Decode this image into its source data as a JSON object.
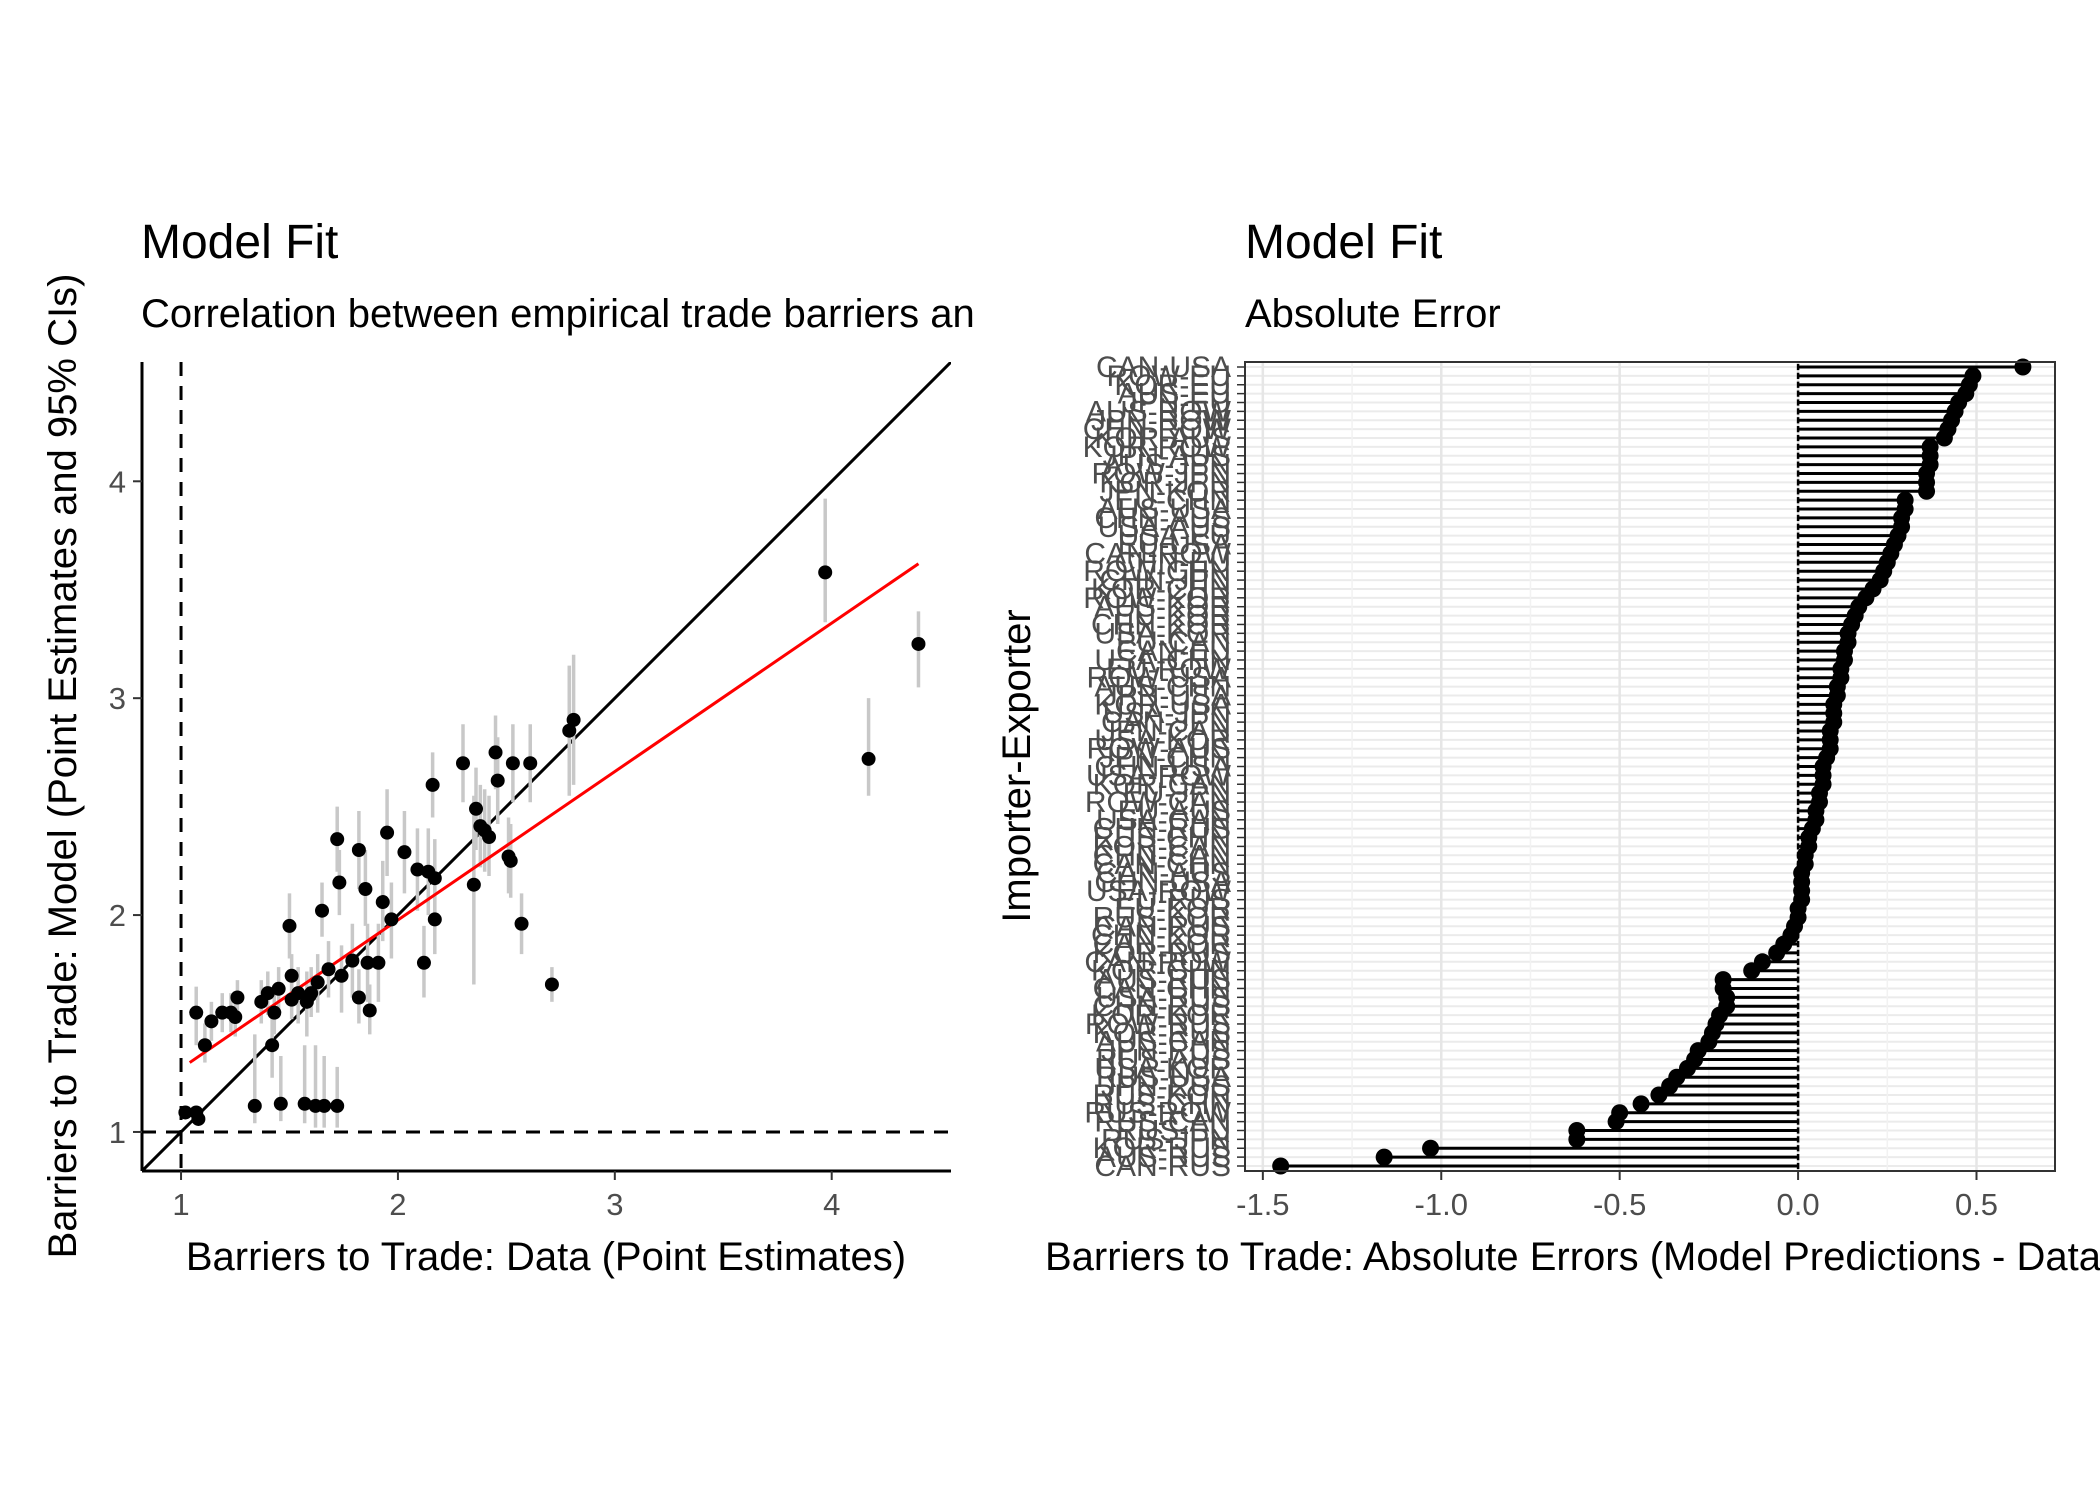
{
  "chart_data": [
    {
      "type": "scatter",
      "title": "Model Fit",
      "subtitle": "Correlation between empirical trade barriers and model estimates",
      "xlabel": "Barriers to Trade: Data (Point Estimates)",
      "ylabel": "Barriers to Trade: Model (Point Estimates and 95% CIs)",
      "xlim": [
        0.82,
        4.55
      ],
      "ylim": [
        0.82,
        4.55
      ],
      "xticks": [
        "1",
        "2",
        "3",
        "4"
      ],
      "yticks": [
        "1",
        "2",
        "3",
        "4"
      ],
      "grid": false,
      "reference_lines": {
        "identity_line": "y = x",
        "dashed_x": 1,
        "dashed_y": 1,
        "fit_line": {
          "x": [
            1.04,
            4.4
          ],
          "y": [
            1.32,
            3.62
          ],
          "color": "#ff0000"
        }
      },
      "points": [
        {
          "x": 1.02,
          "y": 1.09,
          "lo": 1.09,
          "hi": 1.09
        },
        {
          "x": 1.07,
          "y": 1.09,
          "lo": 1.09,
          "hi": 1.09
        },
        {
          "x": 1.08,
          "y": 1.06,
          "lo": 1.06,
          "hi": 1.06
        },
        {
          "x": 1.07,
          "y": 1.55,
          "lo": 1.4,
          "hi": 1.67
        },
        {
          "x": 1.11,
          "y": 1.4,
          "lo": 1.32,
          "hi": 1.5
        },
        {
          "x": 1.14,
          "y": 1.51,
          "lo": 1.42,
          "hi": 1.6
        },
        {
          "x": 1.19,
          "y": 1.55,
          "lo": 1.46,
          "hi": 1.64
        },
        {
          "x": 1.23,
          "y": 1.55,
          "lo": 1.46,
          "hi": 1.64
        },
        {
          "x": 1.25,
          "y": 1.53,
          "lo": 1.44,
          "hi": 1.62
        },
        {
          "x": 1.26,
          "y": 1.62,
          "lo": 1.52,
          "hi": 1.7
        },
        {
          "x": 1.34,
          "y": 1.12,
          "lo": 1.04,
          "hi": 1.45
        },
        {
          "x": 1.37,
          "y": 1.6,
          "lo": 1.5,
          "hi": 1.7
        },
        {
          "x": 1.4,
          "y": 1.64,
          "lo": 1.54,
          "hi": 1.74
        },
        {
          "x": 1.42,
          "y": 1.4,
          "lo": 1.25,
          "hi": 1.55
        },
        {
          "x": 1.43,
          "y": 1.55,
          "lo": 1.45,
          "hi": 1.65
        },
        {
          "x": 1.45,
          "y": 1.66,
          "lo": 1.56,
          "hi": 1.76
        },
        {
          "x": 1.46,
          "y": 1.13,
          "lo": 1.05,
          "hi": 1.35
        },
        {
          "x": 1.5,
          "y": 1.95,
          "lo": 1.8,
          "hi": 2.1
        },
        {
          "x": 1.51,
          "y": 1.61,
          "lo": 1.52,
          "hi": 1.7
        },
        {
          "x": 1.51,
          "y": 1.72,
          "lo": 1.62,
          "hi": 1.82
        },
        {
          "x": 1.54,
          "y": 1.64,
          "lo": 1.5,
          "hi": 1.76
        },
        {
          "x": 1.57,
          "y": 1.13,
          "lo": 1.04,
          "hi": 1.4
        },
        {
          "x": 1.58,
          "y": 1.6,
          "lo": 1.44,
          "hi": 1.74
        },
        {
          "x": 1.6,
          "y": 1.64,
          "lo": 1.53,
          "hi": 1.76
        },
        {
          "x": 1.62,
          "y": 1.12,
          "lo": 1.02,
          "hi": 1.4
        },
        {
          "x": 1.63,
          "y": 1.69,
          "lo": 1.55,
          "hi": 1.82
        },
        {
          "x": 1.65,
          "y": 2.02,
          "lo": 1.9,
          "hi": 2.15
        },
        {
          "x": 1.66,
          "y": 1.12,
          "lo": 1.02,
          "hi": 1.35
        },
        {
          "x": 1.68,
          "y": 1.75,
          "lo": 1.62,
          "hi": 1.88
        },
        {
          "x": 1.72,
          "y": 2.35,
          "lo": 2.2,
          "hi": 2.5
        },
        {
          "x": 1.72,
          "y": 1.12,
          "lo": 1.02,
          "hi": 1.3
        },
        {
          "x": 1.73,
          "y": 2.15,
          "lo": 2.0,
          "hi": 2.3
        },
        {
          "x": 1.74,
          "y": 1.72,
          "lo": 1.55,
          "hi": 1.86
        },
        {
          "x": 1.79,
          "y": 1.79,
          "lo": 1.62,
          "hi": 1.96
        },
        {
          "x": 1.82,
          "y": 2.3,
          "lo": 2.12,
          "hi": 2.48
        },
        {
          "x": 1.82,
          "y": 1.62,
          "lo": 1.5,
          "hi": 1.75
        },
        {
          "x": 1.85,
          "y": 2.12,
          "lo": 1.95,
          "hi": 2.3
        },
        {
          "x": 1.86,
          "y": 1.78,
          "lo": 1.6,
          "hi": 1.96
        },
        {
          "x": 1.87,
          "y": 1.56,
          "lo": 1.45,
          "hi": 1.68
        },
        {
          "x": 1.91,
          "y": 1.78,
          "lo": 1.6,
          "hi": 1.96
        },
        {
          "x": 1.93,
          "y": 2.06,
          "lo": 1.88,
          "hi": 2.25
        },
        {
          "x": 1.95,
          "y": 2.38,
          "lo": 2.18,
          "hi": 2.58
        },
        {
          "x": 1.97,
          "y": 1.98,
          "lo": 1.8,
          "hi": 2.15
        },
        {
          "x": 2.03,
          "y": 2.29,
          "lo": 2.1,
          "hi": 2.48
        },
        {
          "x": 2.09,
          "y": 2.21,
          "lo": 2.02,
          "hi": 2.4
        },
        {
          "x": 2.12,
          "y": 1.78,
          "lo": 1.62,
          "hi": 1.95
        },
        {
          "x": 2.14,
          "y": 2.2,
          "lo": 2.0,
          "hi": 2.4
        },
        {
          "x": 2.16,
          "y": 2.6,
          "lo": 2.45,
          "hi": 2.75
        },
        {
          "x": 2.17,
          "y": 2.17,
          "lo": 2.0,
          "hi": 2.35
        },
        {
          "x": 2.17,
          "y": 1.98,
          "lo": 1.82,
          "hi": 2.15
        },
        {
          "x": 2.3,
          "y": 2.7,
          "lo": 2.52,
          "hi": 2.88
        },
        {
          "x": 2.35,
          "y": 2.14,
          "lo": 1.68,
          "hi": 2.55
        },
        {
          "x": 2.36,
          "y": 2.49,
          "lo": 2.3,
          "hi": 2.68
        },
        {
          "x": 2.38,
          "y": 2.41,
          "lo": 2.22,
          "hi": 2.6
        },
        {
          "x": 2.4,
          "y": 2.39,
          "lo": 2.2,
          "hi": 2.58
        },
        {
          "x": 2.42,
          "y": 2.36,
          "lo": 2.18,
          "hi": 2.55
        },
        {
          "x": 2.45,
          "y": 2.75,
          "lo": 2.58,
          "hi": 2.92
        },
        {
          "x": 2.46,
          "y": 2.62,
          "lo": 2.42,
          "hi": 2.82
        },
        {
          "x": 2.51,
          "y": 2.27,
          "lo": 2.1,
          "hi": 2.45
        },
        {
          "x": 2.52,
          "y": 2.25,
          "lo": 2.08,
          "hi": 2.42
        },
        {
          "x": 2.53,
          "y": 2.7,
          "lo": 2.52,
          "hi": 2.88
        },
        {
          "x": 2.57,
          "y": 1.96,
          "lo": 1.82,
          "hi": 2.1
        },
        {
          "x": 2.61,
          "y": 2.7,
          "lo": 2.52,
          "hi": 2.88
        },
        {
          "x": 2.71,
          "y": 1.68,
          "lo": 1.6,
          "hi": 1.76
        },
        {
          "x": 2.79,
          "y": 2.85,
          "lo": 2.55,
          "hi": 3.15
        },
        {
          "x": 2.81,
          "y": 2.9,
          "lo": 2.6,
          "hi": 3.2
        },
        {
          "x": 3.97,
          "y": 3.58,
          "lo": 3.35,
          "hi": 3.92
        },
        {
          "x": 4.17,
          "y": 2.72,
          "lo": 2.55,
          "hi": 3.0
        },
        {
          "x": 4.4,
          "y": 3.25,
          "lo": 3.05,
          "hi": 3.4
        }
      ]
    },
    {
      "type": "lollipop",
      "title": "Model Fit",
      "subtitle": "Absolute Error",
      "xlabel": "Barriers to Trade: Absolute Errors (Model Predictions - Data)",
      "ylabel": "Importer-Exporter",
      "xlim": [
        -1.55,
        0.72
      ],
      "xticks": [
        "-1.5",
        "-1.0",
        "-0.5",
        "0.0",
        "0.5"
      ],
      "grid": true,
      "baseline": 0,
      "points": [
        {
          "label": "CAN-USA",
          "value": 0.63
        },
        {
          "label": "ROW-EU",
          "value": 0.49
        },
        {
          "label": "KOR-EU",
          "value": 0.48
        },
        {
          "label": "AUS-EU",
          "value": 0.47
        },
        {
          "label": "JPN-EU",
          "value": 0.45
        },
        {
          "label": "AUS-ROW",
          "value": 0.44
        },
        {
          "label": "JPN-ROW",
          "value": 0.43
        },
        {
          "label": "CHN-ROW",
          "value": 0.42
        },
        {
          "label": "KOR-AUS",
          "value": 0.41
        },
        {
          "label": "KOR-ROW",
          "value": 0.37
        },
        {
          "label": "JPN-AUS",
          "value": 0.37
        },
        {
          "label": "AUS-JPN",
          "value": 0.37
        },
        {
          "label": "ROW-JPN",
          "value": 0.36
        },
        {
          "label": "KOR-JPN",
          "value": 0.36
        },
        {
          "label": "JPN-KOR",
          "value": 0.36
        },
        {
          "label": "EU-CHN",
          "value": 0.3
        },
        {
          "label": "AUS-USA",
          "value": 0.3
        },
        {
          "label": "CHN-AUS",
          "value": 0.29
        },
        {
          "label": "USA-AUS",
          "value": 0.29
        },
        {
          "label": "USA-EU",
          "value": 0.28
        },
        {
          "label": "EU-USA",
          "value": 0.27
        },
        {
          "label": "CAN-ROW",
          "value": 0.26
        },
        {
          "label": "CHN-EU",
          "value": 0.25
        },
        {
          "label": "ROW-CHN",
          "value": 0.24
        },
        {
          "label": "CHN-JPN",
          "value": 0.23
        },
        {
          "label": "KOR-CHN",
          "value": 0.21
        },
        {
          "label": "ROW-KOR",
          "value": 0.19
        },
        {
          "label": "AUS-KOR",
          "value": 0.17
        },
        {
          "label": "EU-KOR",
          "value": 0.16
        },
        {
          "label": "CHN-KOR",
          "value": 0.15
        },
        {
          "label": "USA-KOR",
          "value": 0.14
        },
        {
          "label": "EU-CAN",
          "value": 0.14
        },
        {
          "label": "CAN-EU",
          "value": 0.13
        },
        {
          "label": "USA-CHN",
          "value": 0.13
        },
        {
          "label": "EU-ROW",
          "value": 0.12
        },
        {
          "label": "ROW-USA",
          "value": 0.12
        },
        {
          "label": "AUS-CHN",
          "value": 0.11
        },
        {
          "label": "JPN-USA",
          "value": 0.11
        },
        {
          "label": "KOR-USA",
          "value": 0.1
        },
        {
          "label": "USA-JPN",
          "value": 0.1
        },
        {
          "label": "CAN-JPN",
          "value": 0.1
        },
        {
          "label": "JPN-CAN",
          "value": 0.09
        },
        {
          "label": "USA-KOR",
          "value": 0.09
        },
        {
          "label": "ROW-AUS",
          "value": 0.09
        },
        {
          "label": "JPN-CHN",
          "value": 0.08
        },
        {
          "label": "CHN-USA",
          "value": 0.07
        },
        {
          "label": "USA-ROW",
          "value": 0.07
        },
        {
          "label": "KOR-CAN",
          "value": 0.07
        },
        {
          "label": "EU-JPN",
          "value": 0.06
        },
        {
          "label": "ROW-CAN",
          "value": 0.06
        },
        {
          "label": "EU-AUS",
          "value": 0.05
        },
        {
          "label": "USA-CAN",
          "value": 0.05
        },
        {
          "label": "CHN-RUS",
          "value": 0.04
        },
        {
          "label": "RUS-CHN",
          "value": 0.03
        },
        {
          "label": "KOR-CAN",
          "value": 0.03
        },
        {
          "label": "CHN-CAN",
          "value": 0.02
        },
        {
          "label": "CAN-CHN",
          "value": 0.02
        },
        {
          "label": "CAN-AUS",
          "value": 0.01
        },
        {
          "label": "CHN-USA",
          "value": 0.01
        },
        {
          "label": "USA-ROW",
          "value": 0.01
        },
        {
          "label": "EU-RUS",
          "value": 0.01
        },
        {
          "label": "EU-KOR",
          "value": 0.0
        },
        {
          "label": "RUS-KOR",
          "value": 0.0
        },
        {
          "label": "CAN-RUS",
          "value": -0.01
        },
        {
          "label": "CHN-KOR",
          "value": -0.02
        },
        {
          "label": "CAN-KOR",
          "value": -0.04
        },
        {
          "label": "KOR-RUS",
          "value": -0.06
        },
        {
          "label": "CAN-ROW",
          "value": -0.1
        },
        {
          "label": "KOR-CHN",
          "value": -0.13
        },
        {
          "label": "AUS-RUS",
          "value": -0.21
        },
        {
          "label": "CAN-CHN",
          "value": -0.21
        },
        {
          "label": "USA-RUS",
          "value": -0.2
        },
        {
          "label": "CHN-RUS",
          "value": -0.2
        },
        {
          "label": "KOR-KOR",
          "value": -0.22
        },
        {
          "label": "ROW-RUS",
          "value": -0.23
        },
        {
          "label": "KOR-RUS",
          "value": -0.24
        },
        {
          "label": "AUS-CAN",
          "value": -0.25
        },
        {
          "label": "JPN-RUS",
          "value": -0.28
        },
        {
          "label": "RUS-AUS",
          "value": -0.29
        },
        {
          "label": "USA-KOR",
          "value": -0.31
        },
        {
          "label": "RUS-USA",
          "value": -0.34
        },
        {
          "label": "JPN-RUS",
          "value": -0.36
        },
        {
          "label": "RUS-KOR",
          "value": -0.39
        },
        {
          "label": "RUS-CHN",
          "value": -0.44
        },
        {
          "label": "RUS-ROW",
          "value": -0.5
        },
        {
          "label": "RUS-CAN",
          "value": -0.51
        },
        {
          "label": "RUS-EU",
          "value": -0.62
        },
        {
          "label": "RUS-JPN",
          "value": -0.62
        },
        {
          "label": "KOR-RUS",
          "value": -1.03
        },
        {
          "label": "AUS-RUS",
          "value": -1.16
        },
        {
          "label": "CAN-RUS",
          "value": -1.45
        }
      ]
    }
  ]
}
